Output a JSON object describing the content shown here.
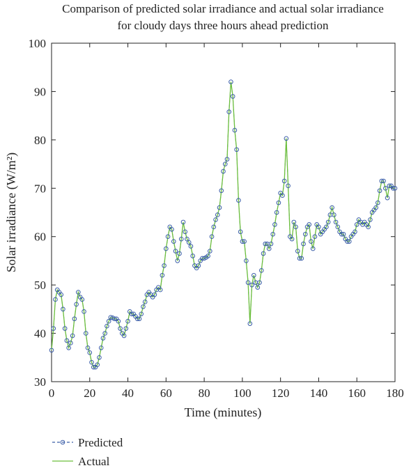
{
  "chart_data": {
    "type": "line",
    "title": [
      "Comparison of predicted solar irradiance and actual solar irradiance",
      "for cloudy days three hours ahead prediction"
    ],
    "xlabel": "Time (minutes)",
    "ylabel": "Solar irradiance (W/m²)",
    "xlim": [
      0,
      180
    ],
    "ylim": [
      30,
      100
    ],
    "xticks": [
      0,
      20,
      40,
      60,
      80,
      100,
      120,
      140,
      160,
      180
    ],
    "yticks": [
      30,
      40,
      50,
      60,
      70,
      80,
      90,
      100
    ],
    "legend": "bottom-left",
    "x": [
      0,
      1,
      2,
      3,
      4,
      5,
      6,
      7,
      8,
      9,
      10,
      11,
      12,
      13,
      14,
      15,
      16,
      17,
      18,
      19,
      20,
      21,
      22,
      23,
      24,
      25,
      26,
      27,
      28,
      29,
      30,
      31,
      32,
      33,
      34,
      35,
      36,
      37,
      38,
      39,
      40,
      41,
      42,
      43,
      44,
      45,
      46,
      47,
      48,
      49,
      50,
      51,
      52,
      53,
      54,
      55,
      56,
      57,
      58,
      59,
      60,
      61,
      62,
      63,
      64,
      65,
      66,
      67,
      68,
      69,
      70,
      71,
      72,
      73,
      74,
      75,
      76,
      77,
      78,
      79,
      80,
      81,
      82,
      83,
      84,
      85,
      86,
      87,
      88,
      89,
      90,
      91,
      92,
      93,
      94,
      95,
      96,
      97,
      98,
      99,
      100,
      101,
      102,
      103,
      104,
      105,
      106,
      107,
      108,
      109,
      110,
      111,
      112,
      113,
      114,
      115,
      116,
      117,
      118,
      119,
      120,
      121,
      122,
      123,
      124,
      125,
      126,
      127,
      128,
      129,
      130,
      131,
      132,
      133,
      134,
      135,
      136,
      137,
      138,
      139,
      140,
      141,
      142,
      143,
      144,
      145,
      146,
      147,
      148,
      149,
      150,
      151,
      152,
      153,
      154,
      155,
      156,
      157,
      158,
      159,
      160,
      161,
      162,
      163,
      164,
      165,
      166,
      167,
      168,
      169,
      170,
      171,
      172,
      173,
      174,
      175,
      176,
      177,
      178,
      179,
      180
    ],
    "series": [
      {
        "name": "Predicted",
        "color": "#3b5ea8",
        "dashed": true,
        "marker": "circle",
        "values": [
          36.5,
          41,
          47,
          49,
          48.5,
          48,
          45,
          41,
          38.5,
          37,
          38,
          39.5,
          43,
          46,
          48.5,
          47.5,
          47,
          44.5,
          40,
          37,
          36,
          34,
          33,
          33,
          33.5,
          35,
          37,
          39,
          40,
          41.5,
          42.5,
          43.3,
          43.2,
          43,
          43,
          42.5,
          41,
          40,
          39.5,
          41,
          42.5,
          44.5,
          44,
          44,
          43.5,
          43,
          43,
          44,
          45.5,
          46.5,
          48,
          48.5,
          48,
          47.5,
          48,
          49,
          49.5,
          49,
          52,
          54,
          57.5,
          60,
          62,
          61.5,
          59,
          57,
          55,
          56.5,
          59.5,
          63,
          61,
          59.5,
          58.8,
          58,
          56,
          54,
          53.5,
          54,
          55,
          55.5,
          55.5,
          55.7,
          56,
          57,
          60,
          62,
          63.5,
          64.5,
          66,
          69.5,
          73.5,
          75,
          76,
          85.8,
          92,
          89,
          82,
          78,
          67.5,
          61,
          59,
          59,
          55,
          50.5,
          42,
          50,
          52,
          50.5,
          49.5,
          50.5,
          53,
          56.5,
          58.5,
          58.5,
          57.5,
          58.5,
          60.5,
          62.5,
          65,
          67,
          69,
          68.5,
          71.5,
          80.3,
          70.5,
          60,
          59.5,
          63,
          62,
          57,
          55.5,
          55.5,
          58.5,
          60.5,
          62,
          62.5,
          59,
          57.5,
          60,
          62.5,
          62,
          60.5,
          61,
          61.5,
          62,
          63,
          64.5,
          66,
          64.5,
          63,
          62,
          61,
          60.5,
          60.5,
          59.5,
          59,
          59,
          60,
          60.5,
          61,
          62.5,
          63.5,
          63,
          62.5,
          63,
          62.5,
          62,
          63.5,
          65,
          65.5,
          66,
          67,
          69.5,
          71.5,
          71.5,
          70,
          68,
          70.5,
          70.5,
          70,
          70
        ]
      },
      {
        "name": "Actual",
        "color": "#6cbf3c",
        "values": [
          36.5,
          41,
          47,
          49,
          48.5,
          48,
          45,
          41,
          38.5,
          37,
          38,
          39.5,
          43,
          46,
          48.5,
          47.5,
          47,
          44.5,
          40,
          37,
          36,
          34,
          33,
          33,
          33.5,
          35,
          37,
          39,
          40,
          41.5,
          42.5,
          43.3,
          43.2,
          43,
          43,
          42.5,
          41,
          40,
          39.5,
          41,
          42.5,
          44.5,
          44,
          44,
          43.5,
          43,
          43,
          44,
          45.5,
          46.5,
          48,
          48.5,
          48,
          47.5,
          48,
          49,
          49.5,
          49,
          52,
          54,
          57.5,
          60,
          62,
          61.5,
          59,
          57,
          55,
          56.5,
          59.5,
          63,
          61,
          59.5,
          58.8,
          58,
          56,
          54,
          53.5,
          54,
          55,
          55.5,
          55.5,
          55.7,
          56,
          57,
          60,
          62,
          63.5,
          64.5,
          66,
          69.5,
          73.5,
          75,
          76,
          85.8,
          92,
          89,
          82,
          78,
          67.5,
          61,
          59,
          59,
          55,
          50.5,
          42,
          50,
          52,
          50.5,
          49.5,
          50.5,
          53,
          56.5,
          58.5,
          58.5,
          57.5,
          58.5,
          60.5,
          62.5,
          65,
          67,
          69,
          68.5,
          71.5,
          80.3,
          70.5,
          60,
          59.5,
          63,
          62,
          57,
          55.5,
          55.5,
          58.5,
          60.5,
          62,
          62.5,
          59,
          57.5,
          60,
          62.5,
          62,
          60.5,
          61,
          61.5,
          62,
          63,
          64.5,
          66,
          64.5,
          63,
          62,
          61,
          60.5,
          60.5,
          59.5,
          59,
          59,
          60,
          60.5,
          61,
          62.5,
          63.5,
          63,
          62.5,
          63,
          62.5,
          62,
          63.5,
          65,
          65.5,
          66,
          67,
          69.5,
          71.5,
          71.5,
          70,
          68,
          70.5,
          70.5,
          70,
          70
        ]
      }
    ]
  }
}
